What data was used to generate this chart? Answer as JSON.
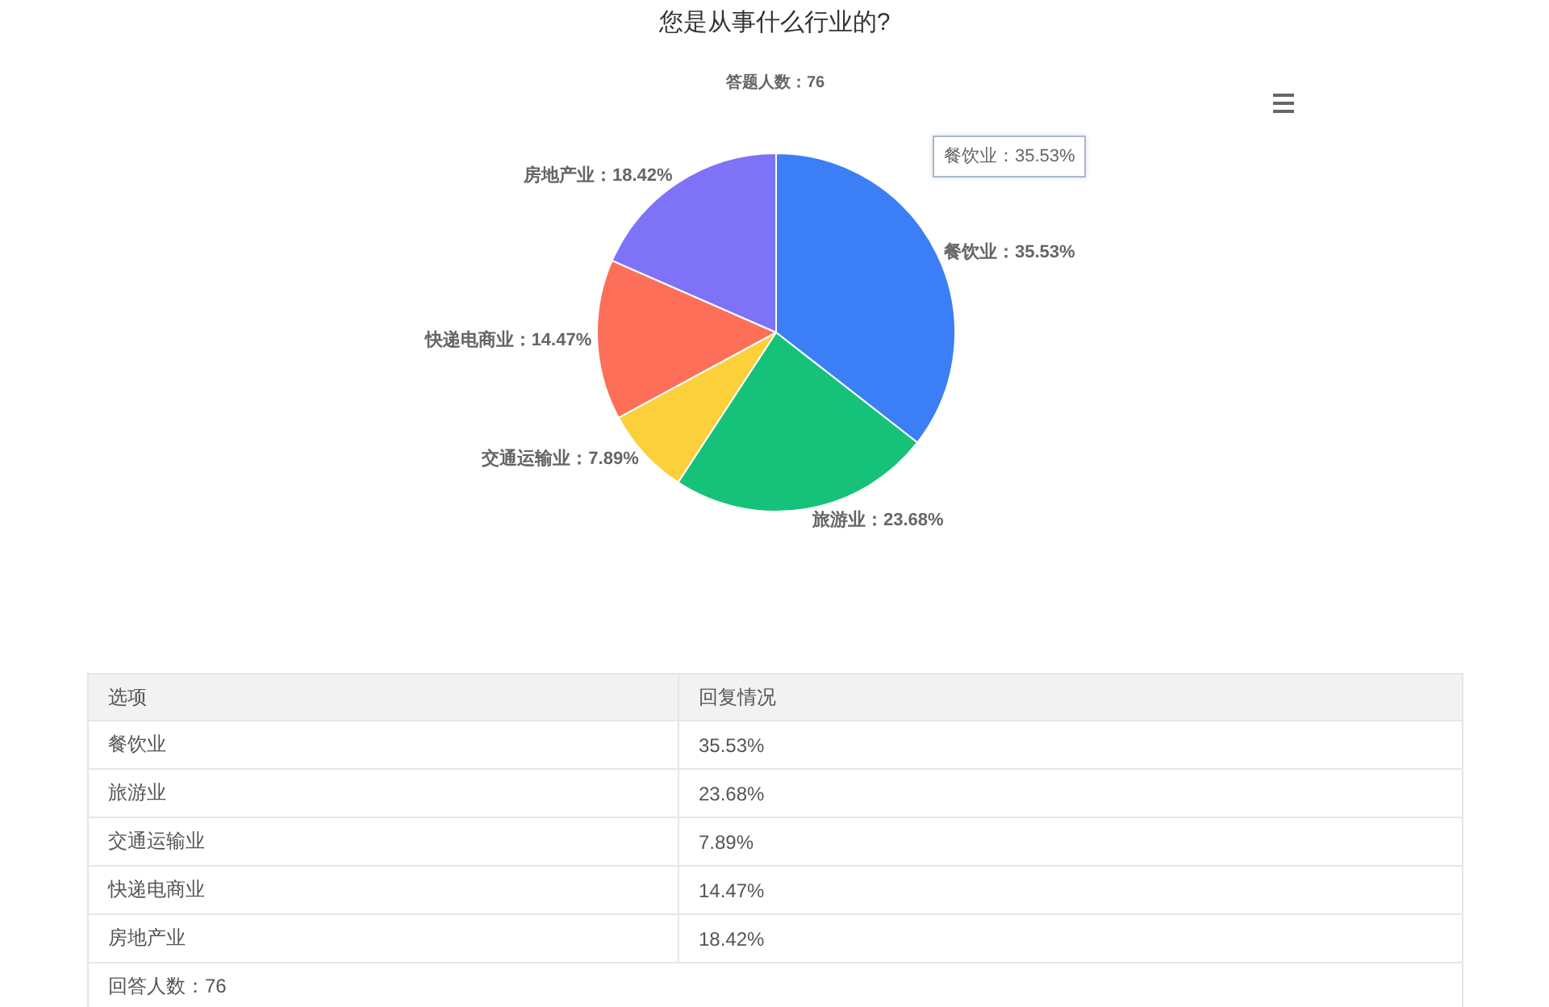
{
  "chart_data": [
    {
      "type": "pie",
      "title": "您是从事什么行业的?",
      "subtitle": "答题人数：76",
      "categories": [
        "餐饮业",
        "旅游业",
        "交通运输业",
        "快递电商业",
        "房地产业"
      ],
      "values": [
        35.53,
        23.68,
        7.89,
        14.47,
        18.42
      ],
      "colors": [
        "#3b7ef6",
        "#16c27a",
        "#fcd03a",
        "#fd6f58",
        "#7e72f7"
      ],
      "value_labels": [
        "35.53%",
        "23.68%",
        "7.89%",
        "14.47%",
        "18.42%"
      ],
      "annotations": [
        "餐饮业：35.53%"
      ]
    },
    {
      "type": "other",
      "categories": [
        "餐饮业",
        "旅游业",
        "交通运输业",
        "快递电商业",
        "房地产业"
      ],
      "value_labels": [
        "35.53%",
        "23.68%",
        "7.89%",
        "14.47%",
        "18.42%"
      ],
      "annotations": [
        "选项",
        "回复情况",
        "回答人数：76"
      ]
    }
  ]
}
